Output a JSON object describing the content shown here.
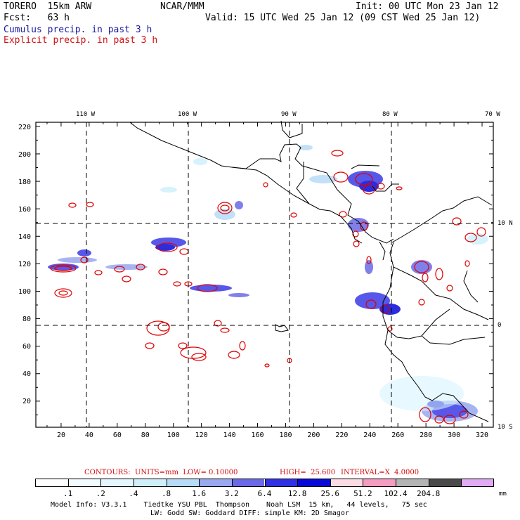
{
  "header": {
    "model": "TORERO  15km ARW",
    "center": "NCAR/MMM",
    "init": "Init: 00 UTC Mon 23 Jan 12",
    "fcst": "Fcst:   63 h",
    "valid": "Valid: 15 UTC Wed 25 Jan 12 (09 CST Wed 25 Jan 12)",
    "line_blue": "Cumulus precip. in past 3 h",
    "line_red": "Explicit precip. in past 3 h"
  },
  "map": {
    "top_lon_labels": [
      "110 W",
      "100 W",
      "90 W",
      "80 W",
      "70 W"
    ],
    "right_lat_labels": [
      "10 N",
      "0",
      "10 S"
    ],
    "y_axis_labels": [
      "220",
      "200",
      "180",
      "160",
      "140",
      "120",
      "100",
      "80",
      "60",
      "40",
      "20"
    ],
    "x_axis_labels": [
      "20",
      "40",
      "60",
      "80",
      "100",
      "120",
      "140",
      "160",
      "180",
      "200",
      "220",
      "240",
      "260",
      "280",
      "300",
      "320"
    ],
    "colors": {
      "coast": "#000000",
      "grid": "#000000",
      "cumulus_fill": "#3030e0",
      "explicit_contour": "#e00000"
    }
  },
  "contours": {
    "label_units": "CONTOURS:  UNITS=mm  LOW= 0.10000",
    "label_high": "HIGH=  25.600",
    "label_interval": "INTERVAL=X  4.0000"
  },
  "colorbar": {
    "unit": "mm",
    "labels": [
      ".1",
      ".2",
      ".4",
      ".8",
      "1.6",
      "3.2",
      "6.4",
      "12.8",
      "25.6",
      "51.2",
      "102.4",
      "204.8"
    ],
    "colors": [
      "#ffffff",
      "#f2fbff",
      "#e6f8ff",
      "#cff0fb",
      "#b8dcf7",
      "#9aa8f0",
      "#6a6ae8",
      "#3030e6",
      "#0808d8",
      "#fcdce4",
      "#f59dc0",
      "#b4b4b4",
      "#4a4a4a",
      "#e0aaf5"
    ]
  },
  "footer": {
    "line1": "Model Info: V3.3.1    Tiedtke YSU PBL  Thompson    Noah LSM  15 km,   44 levels,   75 sec",
    "line2": "LW: Godd SW: Goddard DIFF: simple KM: 2D Smagor"
  }
}
